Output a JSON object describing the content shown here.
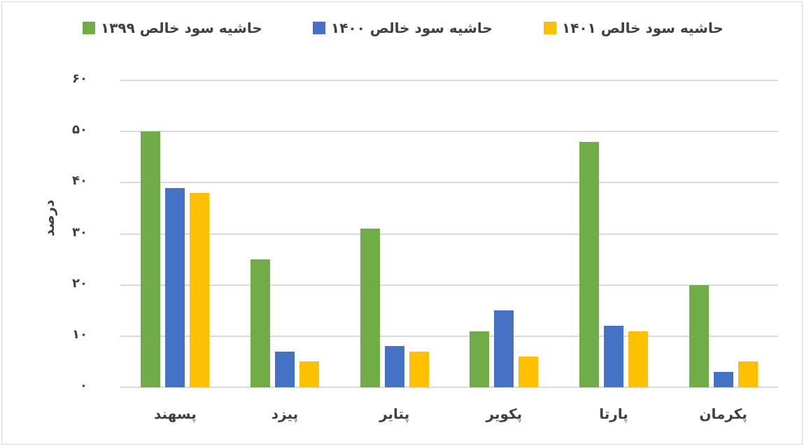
{
  "chart_data": {
    "type": "bar",
    "title": "",
    "xlabel": "",
    "ylabel": "درصد",
    "ylim": [
      0,
      60
    ],
    "yticks": [
      "۰",
      "۱۰",
      "۲۰",
      "۳۰",
      "۴۰",
      "۵۰",
      "۶۰"
    ],
    "ytick_values": [
      0,
      10,
      20,
      30,
      40,
      50,
      60
    ],
    "grid": true,
    "legend_position": "top",
    "categories": [
      "پکرمان",
      "پارتا",
      "پکویر",
      "پتایر",
      "پیزد",
      "پسهند"
    ],
    "series": [
      {
        "name": "حاشیه سود خالص ۱۳۹۹",
        "color": "#70AD47",
        "values": [
          20,
          48,
          11,
          31,
          25,
          50
        ]
      },
      {
        "name": "حاشیه سود خالص ۱۴۰۰",
        "color": "#4472C4",
        "values": [
          3,
          12,
          15,
          8,
          7,
          39
        ]
      },
      {
        "name": "حاشیه سود خالص ۱۴۰۱",
        "color": "#FFC000",
        "values": [
          5,
          11,
          6,
          7,
          5,
          38
        ]
      }
    ]
  }
}
